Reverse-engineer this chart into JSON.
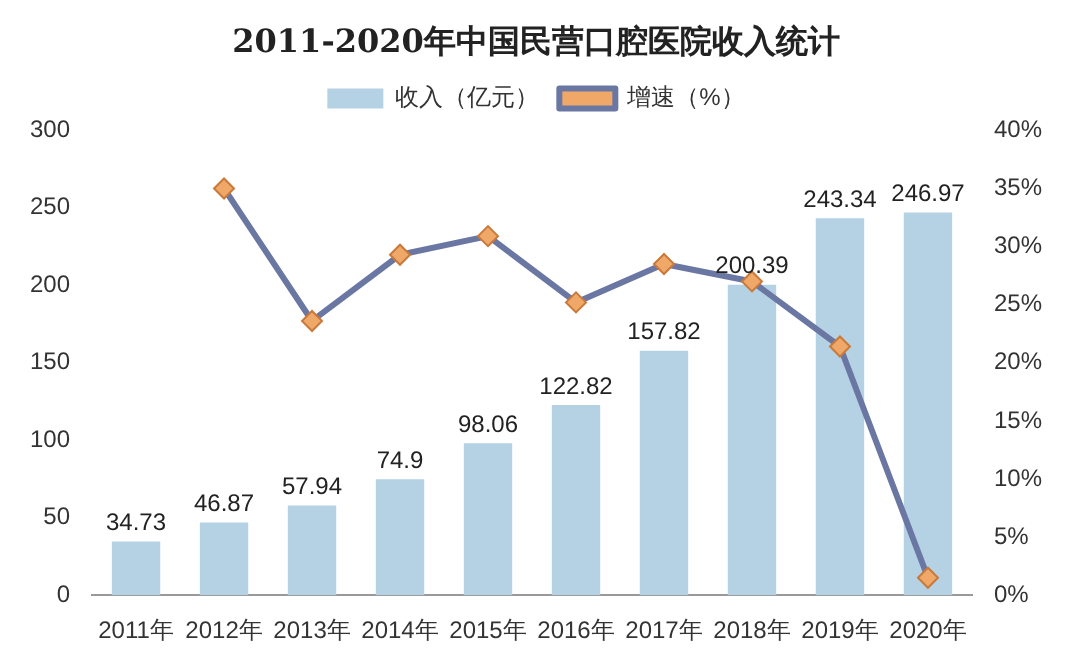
{
  "chart_data": {
    "type": "bar",
    "title": "2011-2020年中国民营口腔医院收入统计",
    "categories": [
      "2011年",
      "2012年",
      "2013年",
      "2014年",
      "2015年",
      "2016年",
      "2017年",
      "2018年",
      "2019年",
      "2020年"
    ],
    "series": [
      {
        "name": "收入（亿元）",
        "color": "#b4d2e4",
        "values": [
          34.73,
          46.87,
          57.94,
          74.9,
          98.06,
          122.82,
          157.82,
          200.39,
          243.34,
          246.97
        ],
        "value_labels": [
          "34.73",
          "46.87",
          "57.94",
          "74.9",
          "98.06",
          "122.82",
          "157.82",
          "200.39",
          "243.34",
          "246.97"
        ]
      },
      {
        "name": "增速（%）",
        "type": "line",
        "axis": "y2",
        "color": "#6b77a3",
        "marker": "diamond",
        "values": [
          null,
          35.0,
          23.6,
          29.3,
          30.9,
          25.2,
          28.5,
          27.0,
          21.4,
          1.5
        ]
      }
    ],
    "ylim": [
      0,
      300
    ],
    "yticks": [
      0,
      50,
      100,
      150,
      200,
      250,
      300
    ],
    "y2lim": [
      0,
      40
    ],
    "y2ticks": [
      {
        "value": 0,
        "label": "0%"
      },
      {
        "value": 5,
        "label": "5%"
      },
      {
        "value": 10,
        "label": "10%"
      },
      {
        "value": 15,
        "label": "15%"
      },
      {
        "value": 20,
        "label": "20%"
      },
      {
        "value": 25,
        "label": "25%"
      },
      {
        "value": 30,
        "label": "30%"
      },
      {
        "value": 35,
        "label": "35%"
      },
      {
        "value": 40,
        "label": "40%"
      }
    ],
    "grid": false,
    "legend": "top"
  }
}
